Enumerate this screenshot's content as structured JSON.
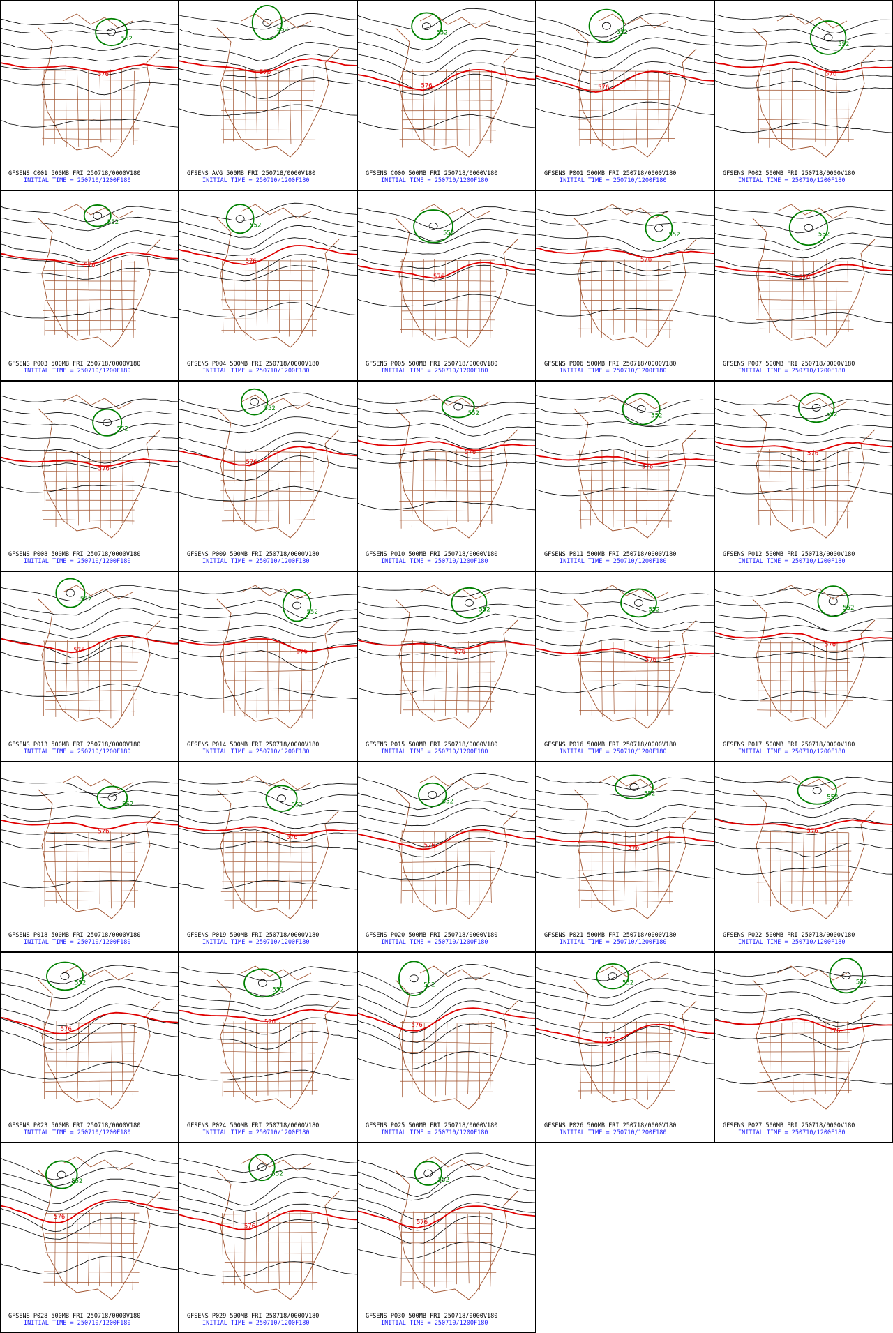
{
  "panels": [
    {
      "title": "GFSENS C001 500MB FRI 250718/0000V180",
      "init_time": "INITIAL TIME = 250710/1200F180",
      "contour_labels": [
        "576",
        "552"
      ]
    },
    {
      "title": "GFSENS AVG 500MB FRI 250718/0000V180",
      "init_time": "INITIAL TIME = 250710/1200F180",
      "contour_labels": [
        "576",
        "552"
      ]
    },
    {
      "title": "GFSENS C000 500MB FRI 250718/0000V180",
      "init_time": "INITIAL TIME = 250710/1200F180",
      "contour_labels": [
        "576",
        "552"
      ]
    },
    {
      "title": "GFSENS P001 500MB FRI 250718/0000V180",
      "init_time": "INITIAL TIME = 250710/1200F180",
      "contour_labels": [
        "576",
        "552"
      ]
    },
    {
      "title": "GFSENS P002 500MB FRI 250718/0000V180",
      "init_time": "INITIAL TIME = 250710/1200F180",
      "contour_labels": [
        "576",
        "552"
      ]
    },
    {
      "title": "GFSENS P003 500MB FRI 250718/0000V180",
      "init_time": "INITIAL TIME = 250710/1200F180",
      "contour_labels": [
        "576",
        "552"
      ]
    },
    {
      "title": "GFSENS P004 500MB FRI 250718/0000V180",
      "init_time": "INITIAL TIME = 250710/1200F180",
      "contour_labels": [
        "576",
        "552"
      ]
    },
    {
      "title": "GFSENS P005 500MB FRI 250718/0000V180",
      "init_time": "INITIAL TIME = 250710/1200F180",
      "contour_labels": [
        "576",
        "552"
      ]
    },
    {
      "title": "GFSENS P006 500MB FRI 250718/0000V180",
      "init_time": "INITIAL TIME = 250710/1200F180",
      "contour_labels": [
        "576",
        "552"
      ]
    },
    {
      "title": "GFSENS P007 500MB FRI 250718/0000V180",
      "init_time": "INITIAL TIME = 250710/1200F180",
      "contour_labels": [
        "576",
        "552"
      ]
    },
    {
      "title": "GFSENS P008 500MB FRI 250718/0000V180",
      "init_time": "INITIAL TIME = 250710/1200F180",
      "contour_labels": [
        "576",
        "552"
      ]
    },
    {
      "title": "GFSENS P009 500MB FRI 250718/0000V180",
      "init_time": "INITIAL TIME = 250710/1200F180",
      "contour_labels": [
        "576",
        "552"
      ]
    },
    {
      "title": "GFSENS P010 500MB FRI 250718/0000V180",
      "init_time": "INITIAL TIME = 250710/1200F180",
      "contour_labels": [
        "576",
        "552"
      ]
    },
    {
      "title": "GFSENS P011 500MB FRI 250718/0000V180",
      "init_time": "INITIAL TIME = 250710/1200F180",
      "contour_labels": [
        "576",
        "552"
      ]
    },
    {
      "title": "GFSENS P012 500MB FRI 250718/0000V180",
      "init_time": "INITIAL TIME = 250710/1200F180",
      "contour_labels": [
        "576",
        "552"
      ]
    },
    {
      "title": "GFSENS P013 500MB FRI 250718/0000V180",
      "init_time": "INITIAL TIME = 250710/1200F180",
      "contour_labels": [
        "576",
        "552"
      ]
    },
    {
      "title": "GFSENS P014 500MB FRI 250718/0000V180",
      "init_time": "INITIAL TIME = 250710/1200F180",
      "contour_labels": [
        "576",
        "552"
      ]
    },
    {
      "title": "GFSENS P015 500MB FRI 250718/0000V180",
      "init_time": "INITIAL TIME = 250710/1200F180",
      "contour_labels": [
        "576",
        "552"
      ]
    },
    {
      "title": "GFSENS P016 500MB FRI 250718/0000V180",
      "init_time": "INITIAL TIME = 250710/1200F180",
      "contour_labels": [
        "576",
        "552"
      ]
    },
    {
      "title": "GFSENS P017 500MB FRI 250718/0000V180",
      "init_time": "INITIAL TIME = 250710/1200F180",
      "contour_labels": [
        "576",
        "552"
      ]
    },
    {
      "title": "GFSENS P018 500MB FRI 250718/0000V180",
      "init_time": "INITIAL TIME = 250710/1200F180",
      "contour_labels": [
        "576",
        "552"
      ]
    },
    {
      "title": "GFSENS P019 500MB FRI 250718/0000V180",
      "init_time": "INITIAL TIME = 250710/1200F180",
      "contour_labels": [
        "576",
        "552"
      ]
    },
    {
      "title": "GFSENS P020 500MB FRI 250718/0000V180",
      "init_time": "INITIAL TIME = 250710/1200F180",
      "contour_labels": [
        "576",
        "552"
      ]
    },
    {
      "title": "GFSENS P021 500MB FRI 250718/0000V180",
      "init_time": "INITIAL TIME = 250710/1200F180",
      "contour_labels": [
        "576",
        "552"
      ]
    },
    {
      "title": "GFSENS P022 500MB FRI 250718/0000V180",
      "init_time": "INITIAL TIME = 250710/1200F180",
      "contour_labels": [
        "576",
        "552"
      ]
    },
    {
      "title": "GFSENS P023 500MB FRI 250718/0000V180",
      "init_time": "INITIAL TIME = 250710/1200F180",
      "contour_labels": [
        "576",
        "552"
      ]
    },
    {
      "title": "GFSENS P024 500MB FRI 250718/0000V180",
      "init_time": "INITIAL TIME = 250710/1200F180",
      "contour_labels": [
        "576",
        "552"
      ]
    },
    {
      "title": "GFSENS P025 500MB FRI 250718/0000V180",
      "init_time": "INITIAL TIME = 250710/1200F180",
      "contour_labels": [
        "576",
        "552"
      ]
    },
    {
      "title": "GFSENS P026 500MB FRI 250718/0000V180",
      "init_time": "INITIAL TIME = 250710/1200F180",
      "contour_labels": [
        "576",
        "552"
      ]
    },
    {
      "title": "GFSENS P027 500MB FRI 250718/0000V180",
      "init_time": "INITIAL TIME = 250710/1200F180",
      "contour_labels": [
        "576",
        "552"
      ]
    },
    {
      "title": "GFSENS P028 500MB FRI 250718/0000V180",
      "init_time": "INITIAL TIME = 250710/1200F180",
      "contour_labels": [
        "576",
        "552"
      ]
    },
    {
      "title": "GFSENS P029 500MB FRI 250718/0000V180",
      "init_time": "INITIAL TIME = 250710/1200F180",
      "contour_labels": [
        "576",
        "552"
      ]
    },
    {
      "title": "GFSENS P030 500MB FRI 250718/0000V180",
      "init_time": "INITIAL TIME = 250710/1200F180",
      "contour_labels": [
        "576",
        "552"
      ]
    }
  ]
}
